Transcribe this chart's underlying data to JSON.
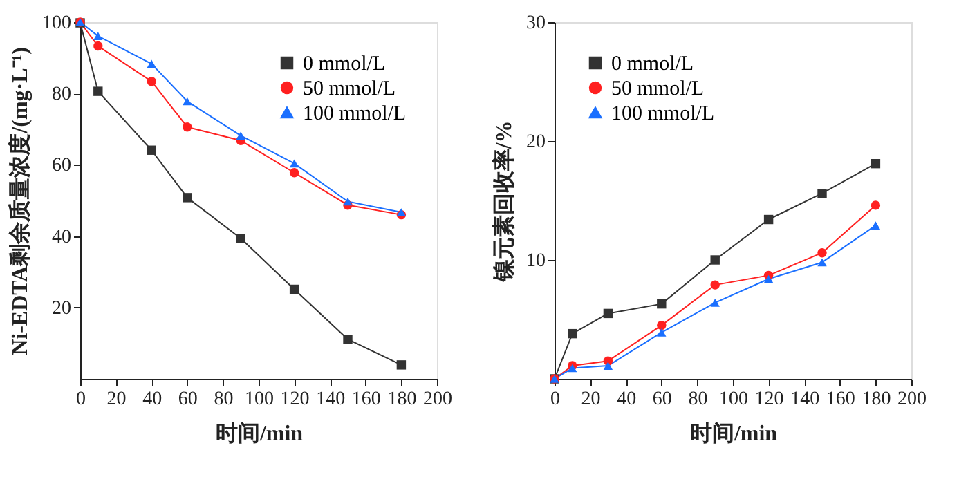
{
  "chart_data": [
    {
      "type": "line",
      "xlabel": "时间/min",
      "ylabel": "Ni-EDTA剩余质量浓度/(mg·L⁻¹)",
      "xlim": [
        0,
        200
      ],
      "xticks": [
        0,
        20,
        40,
        60,
        80,
        100,
        120,
        140,
        160,
        180,
        200
      ],
      "ylim": [
        0,
        100
      ],
      "yticks": [
        20,
        40,
        60,
        80,
        100
      ],
      "grid": false,
      "legend": "top right",
      "x": [
        0,
        10,
        40,
        60,
        90,
        120,
        150,
        180
      ],
      "series": [
        {
          "name": "0 mmol/L",
          "color": "#333333",
          "marker": "square",
          "values": [
            99.8,
            80.6,
            64.1,
            50.8,
            39.4,
            25.1,
            11.1,
            3.9
          ]
        },
        {
          "name": "50 mmol/L",
          "color": "#ff2020",
          "marker": "circle",
          "values": [
            100,
            93.3,
            83.4,
            70.6,
            66.8,
            57.8,
            48.7,
            46.0
          ]
        },
        {
          "name": "100 mmol/L",
          "color": "#1a6fff",
          "marker": "triangle",
          "values": [
            100,
            96.1,
            88.3,
            77.8,
            68.2,
            60.4,
            49.7,
            46.7
          ]
        }
      ]
    },
    {
      "type": "line",
      "xlabel": "时间/min",
      "ylabel": "镍元素回收率/%",
      "xlim": [
        0,
        200
      ],
      "xticks": [
        0,
        20,
        40,
        60,
        80,
        100,
        120,
        140,
        160,
        180,
        200
      ],
      "ylim": [
        0,
        30
      ],
      "yticks": [
        10,
        20,
        30
      ],
      "grid": false,
      "legend": "top left",
      "x": [
        0,
        10,
        30,
        60,
        90,
        120,
        150,
        180
      ],
      "series": [
        {
          "name": "0 mmol/L",
          "color": "#333333",
          "marker": "square",
          "values": [
            0,
            3.8,
            5.5,
            6.3,
            10.0,
            13.4,
            15.6,
            18.1
          ]
        },
        {
          "name": "50 mmol/L",
          "color": "#ff2020",
          "marker": "circle",
          "values": [
            0,
            1.1,
            1.5,
            4.5,
            7.9,
            8.7,
            10.6,
            14.6
          ]
        },
        {
          "name": "100 mmol/L",
          "color": "#1a6fff",
          "marker": "triangle",
          "values": [
            0,
            0.9,
            1.1,
            3.9,
            6.4,
            8.4,
            9.8,
            12.9
          ]
        }
      ]
    }
  ]
}
